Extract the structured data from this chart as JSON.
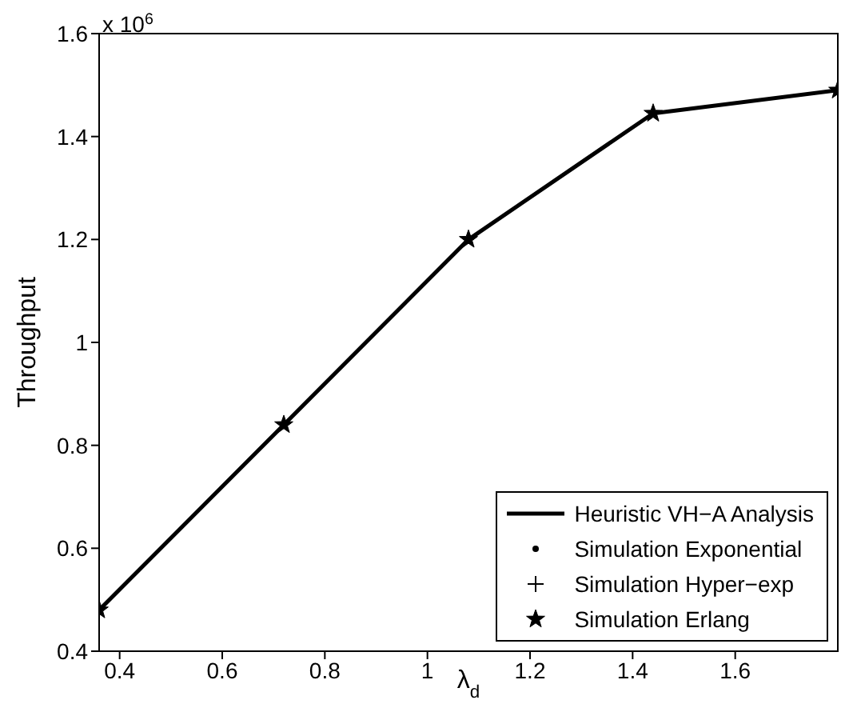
{
  "chart_data": {
    "type": "line",
    "xlabel": "λ$_{d}$",
    "ylabel": "Throughput",
    "annotations": [
      "x 10$^{6}$"
    ],
    "x": [
      0.36,
      0.72,
      1.08,
      1.44,
      1.8
    ],
    "series": [
      {
        "name": "Heuristic VH−A Analysis",
        "color": "#000000",
        "marker": "none",
        "line_style": "solid",
        "values": [
          0.48,
          0.84,
          1.2,
          1.445,
          1.49
        ]
      },
      {
        "name": "Simulation Exponential",
        "type": "scatter",
        "color": "#000000",
        "marker": "circle",
        "values": [
          null,
          null,
          null,
          null,
          null
        ]
      },
      {
        "name": "Simulation Hyper−exp",
        "type": "scatter",
        "color": "#000000",
        "marker": "cross",
        "values": [
          null,
          null,
          null,
          null,
          null
        ]
      },
      {
        "name": "Simulation Erlang",
        "type": "scatter",
        "color": "#000000",
        "marker": "star",
        "values": [
          0.48,
          0.84,
          1.2,
          1.445,
          1.49
        ]
      }
    ],
    "xlim": [
      0.36,
      1.8
    ],
    "xticks": [
      0.4,
      0.6,
      0.8,
      1,
      1.2,
      1.4,
      1.6
    ],
    "ylim": [
      0.4,
      1.6
    ],
    "yticks": [
      0.4,
      0.6,
      0.8,
      1,
      1.2,
      1.4,
      1.6
    ],
    "grid": false,
    "legend": "bottom right"
  }
}
